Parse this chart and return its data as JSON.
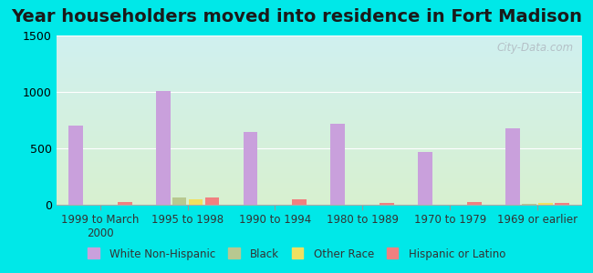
{
  "title": "Year householders moved into residence in Fort Madison",
  "categories": [
    "1999 to March\n2000",
    "1995 to 1998",
    "1990 to 1994",
    "1980 to 1989",
    "1970 to 1979",
    "1969 or earlier"
  ],
  "series": {
    "White Non-Hispanic": [
      700,
      1005,
      645,
      720,
      470,
      675
    ],
    "Black": [
      0,
      65,
      0,
      0,
      0,
      10
    ],
    "Other Race": [
      0,
      45,
      0,
      0,
      0,
      15
    ],
    "Hispanic or Latino": [
      25,
      65,
      45,
      20,
      25,
      20
    ]
  },
  "colors": {
    "White Non-Hispanic": "#c9a0dc",
    "Black": "#b8c890",
    "Other Race": "#f0e060",
    "Hispanic or Latino": "#f08080"
  },
  "ylim": [
    0,
    1500
  ],
  "yticks": [
    0,
    500,
    1000,
    1500
  ],
  "background_top": "#d0f0f0",
  "background_bottom": "#d8f0d0",
  "outer_bg": "#00e8e8",
  "watermark": "City-Data.com",
  "group_width": 0.75,
  "title_fontsize": 14,
  "tick_fontsize": 8.5,
  "legend_fontsize": 8.5
}
